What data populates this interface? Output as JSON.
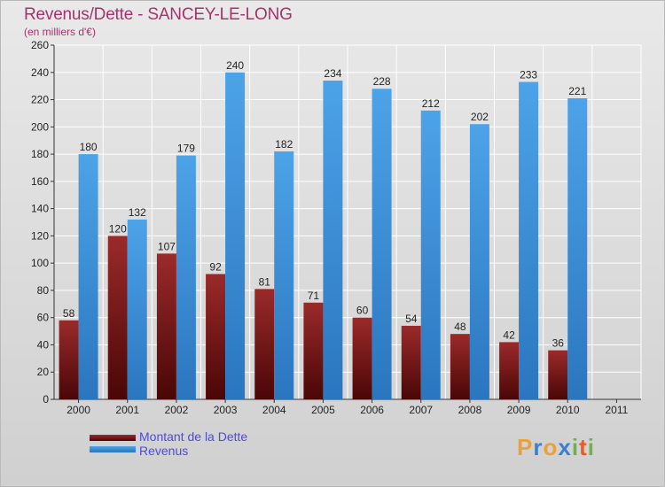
{
  "title": "Revenus/Dette - SANCEY-LE-LONG",
  "subtitle": "(en milliers d'€)",
  "colors": {
    "dette": "#7a1a1a",
    "revenus": "#3d8fd6",
    "title": "#a5336b",
    "legend_text": "#4a4ae6"
  },
  "legend": {
    "dette": "Montant de la Dette",
    "revenus": "Revenus"
  },
  "logo": {
    "text": "Proxiti",
    "letters": [
      "P",
      "r",
      "o",
      "x",
      "i",
      "t",
      "i"
    ],
    "colors": [
      "#e8a23a",
      "#3b7fd4",
      "#e8a23a",
      "#3b7fd4",
      "#6bb544",
      "#e85a2a",
      "#6bb544"
    ]
  },
  "chart_data": {
    "type": "bar",
    "title": "Revenus/Dette - SANCEY-LE-LONG",
    "subtitle": "(en milliers d'€)",
    "xlabel": "",
    "ylabel": "",
    "categories": [
      "2000",
      "2001",
      "2002",
      "2003",
      "2004",
      "2005",
      "2006",
      "2007",
      "2008",
      "2009",
      "2010",
      "2011"
    ],
    "series": [
      {
        "name": "Montant de la Dette",
        "values": [
          58,
          120,
          107,
          92,
          81,
          71,
          60,
          54,
          48,
          42,
          36,
          null
        ]
      },
      {
        "name": "Revenus",
        "values": [
          180,
          132,
          179,
          240,
          182,
          234,
          228,
          212,
          202,
          233,
          221,
          null
        ]
      }
    ],
    "ylim": [
      0,
      260
    ],
    "yticks": [
      0,
      20,
      40,
      60,
      80,
      100,
      120,
      140,
      160,
      180,
      200,
      220,
      240,
      260
    ],
    "grid": true,
    "legend_position": "bottom-left"
  }
}
